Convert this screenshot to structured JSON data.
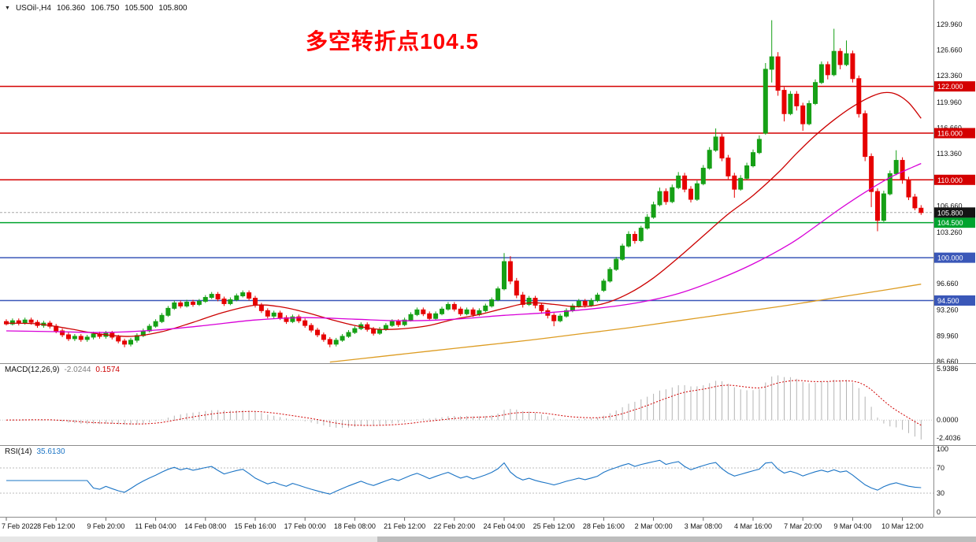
{
  "header": {
    "symbol_period": "USOil-,H4",
    "open": "106.360",
    "high": "106.750",
    "low": "105.500",
    "close": "105.800"
  },
  "annotation": {
    "text": "多空转折点104.5",
    "color": "#ff0000"
  },
  "chart_data": {
    "type": "candlestick",
    "symbol": "USOil-",
    "timeframe": "H4",
    "price_axis": {
      "labels": [
        "129.960",
        "126.660",
        "123.360",
        "119.960",
        "116.660",
        "113.360",
        "106.660",
        "103.260",
        "96.660",
        "93.260",
        "89.960",
        "86.660"
      ],
      "range": [
        86.66,
        129.96
      ]
    },
    "time_axis": {
      "labels": [
        "7 Feb 2022",
        "8 Feb 12:00",
        "9 Feb 20:00",
        "11 Feb 04:00",
        "14 Feb 08:00",
        "15 Feb 16:00",
        "17 Feb 00:00",
        "18 Feb 08:00",
        "21 Feb 12:00",
        "22 Feb 20:00",
        "24 Feb 04:00",
        "25 Feb 12:00",
        "28 Feb 16:00",
        "2 Mar 00:00",
        "3 Mar 08:00",
        "4 Mar 16:00",
        "7 Mar 20:00",
        "9 Mar 04:00",
        "10 Mar 12:00"
      ]
    },
    "levels": [
      {
        "label": "122.000",
        "price": 122.0,
        "color": "#d40000"
      },
      {
        "label": "116.000",
        "price": 116.0,
        "color": "#d40000"
      },
      {
        "label": "110.000",
        "price": 110.0,
        "color": "#d40000"
      },
      {
        "label": "104.500",
        "price": 104.5,
        "color": "#00a32e"
      },
      {
        "label": "100.000",
        "price": 100.0,
        "color": "#3a57b8"
      },
      {
        "label": "94.500",
        "price": 94.5,
        "color": "#3a57b8"
      }
    ],
    "current_price": {
      "label": "105.800",
      "price": 105.8,
      "color": "#141414"
    },
    "candles": [
      [
        91.8,
        92.1,
        91.3,
        91.5
      ],
      [
        91.5,
        92.2,
        91.3,
        91.9
      ],
      [
        91.9,
        92.2,
        91.3,
        91.6
      ],
      [
        91.6,
        92.3,
        91.4,
        92.0
      ],
      [
        92.0,
        92.3,
        91.4,
        91.7
      ],
      [
        91.7,
        92.0,
        91.0,
        91.3
      ],
      [
        91.3,
        91.9,
        91.0,
        91.6
      ],
      [
        91.6,
        91.9,
        90.9,
        91.2
      ],
      [
        91.2,
        91.5,
        90.3,
        90.6
      ],
      [
        90.6,
        90.9,
        89.8,
        90.1
      ],
      [
        90.1,
        90.4,
        89.3,
        89.6
      ],
      [
        89.6,
        90.2,
        89.3,
        89.9
      ],
      [
        89.9,
        90.2,
        89.2,
        89.5
      ],
      [
        89.5,
        90.1,
        89.2,
        89.8
      ],
      [
        89.8,
        90.5,
        89.5,
        90.2
      ],
      [
        90.2,
        90.5,
        89.6,
        89.9
      ],
      [
        89.9,
        90.6,
        89.6,
        90.3
      ],
      [
        90.3,
        90.6,
        89.5,
        89.8
      ],
      [
        89.8,
        90.1,
        89.0,
        89.3
      ],
      [
        89.3,
        89.6,
        88.5,
        88.9
      ],
      [
        88.9,
        89.7,
        88.6,
        89.4
      ],
      [
        89.4,
        90.3,
        89.1,
        90.0
      ],
      [
        90.0,
        90.9,
        89.8,
        90.6
      ],
      [
        90.6,
        91.5,
        90.4,
        91.2
      ],
      [
        91.2,
        92.1,
        91.0,
        91.8
      ],
      [
        91.8,
        92.9,
        91.6,
        92.6
      ],
      [
        92.6,
        93.8,
        92.4,
        93.5
      ],
      [
        93.5,
        94.5,
        93.3,
        94.2
      ],
      [
        94.2,
        94.5,
        93.5,
        93.8
      ],
      [
        93.8,
        94.6,
        93.6,
        94.3
      ],
      [
        94.3,
        94.6,
        93.7,
        94.0
      ],
      [
        94.0,
        94.7,
        93.8,
        94.4
      ],
      [
        94.4,
        95.2,
        94.2,
        94.9
      ],
      [
        94.9,
        95.6,
        94.7,
        95.3
      ],
      [
        95.3,
        95.6,
        94.4,
        94.7
      ],
      [
        94.7,
        95.0,
        93.8,
        94.1
      ],
      [
        94.1,
        94.9,
        93.9,
        94.6
      ],
      [
        94.6,
        95.4,
        94.4,
        95.1
      ],
      [
        95.1,
        95.8,
        94.9,
        95.5
      ],
      [
        95.5,
        95.8,
        94.5,
        94.8
      ],
      [
        94.8,
        95.1,
        93.6,
        93.9
      ],
      [
        93.9,
        94.2,
        92.9,
        93.2
      ],
      [
        93.2,
        93.5,
        92.2,
        92.5
      ],
      [
        92.5,
        93.2,
        92.2,
        92.9
      ],
      [
        92.9,
        93.2,
        92.0,
        92.3
      ],
      [
        92.3,
        92.6,
        91.5,
        91.8
      ],
      [
        91.8,
        92.7,
        91.6,
        92.4
      ],
      [
        92.4,
        92.7,
        91.6,
        91.9
      ],
      [
        91.9,
        92.2,
        91.0,
        91.3
      ],
      [
        91.3,
        91.6,
        90.4,
        90.7
      ],
      [
        90.7,
        91.0,
        89.8,
        90.1
      ],
      [
        90.1,
        90.4,
        89.2,
        89.5
      ],
      [
        89.5,
        89.8,
        88.5,
        88.9
      ],
      [
        88.9,
        89.7,
        88.6,
        89.4
      ],
      [
        89.4,
        90.2,
        89.2,
        89.9
      ],
      [
        89.9,
        90.7,
        89.7,
        90.4
      ],
      [
        90.4,
        91.2,
        90.2,
        90.9
      ],
      [
        90.9,
        91.7,
        90.7,
        91.4
      ],
      [
        91.4,
        91.7,
        90.5,
        90.8
      ],
      [
        90.8,
        91.1,
        90.0,
        90.3
      ],
      [
        90.3,
        91.1,
        90.1,
        90.8
      ],
      [
        90.8,
        91.6,
        90.6,
        91.3
      ],
      [
        91.3,
        92.1,
        91.1,
        91.8
      ],
      [
        91.8,
        92.1,
        91.1,
        91.4
      ],
      [
        91.4,
        92.3,
        91.2,
        92.0
      ],
      [
        92.0,
        93.0,
        91.8,
        92.7
      ],
      [
        92.7,
        93.6,
        92.5,
        93.3
      ],
      [
        93.3,
        93.6,
        92.5,
        92.8
      ],
      [
        92.8,
        93.1,
        91.9,
        92.2
      ],
      [
        92.2,
        93.1,
        92.0,
        92.8
      ],
      [
        92.8,
        93.7,
        92.6,
        93.4
      ],
      [
        93.4,
        94.3,
        93.2,
        94.0
      ],
      [
        94.0,
        94.3,
        93.1,
        93.4
      ],
      [
        93.4,
        93.7,
        92.5,
        92.8
      ],
      [
        92.8,
        93.6,
        92.6,
        93.3
      ],
      [
        93.3,
        93.6,
        92.4,
        92.7
      ],
      [
        92.7,
        93.5,
        92.5,
        93.2
      ],
      [
        93.2,
        94.1,
        93.0,
        93.8
      ],
      [
        93.8,
        94.9,
        93.6,
        94.6
      ],
      [
        94.6,
        96.3,
        94.4,
        96.0
      ],
      [
        96.0,
        100.6,
        95.8,
        99.5
      ],
      [
        99.5,
        100.2,
        96.6,
        97.0
      ],
      [
        97.0,
        97.4,
        94.8,
        95.2
      ],
      [
        95.2,
        95.6,
        93.6,
        94.0
      ],
      [
        94.0,
        95.1,
        93.8,
        94.8
      ],
      [
        94.8,
        95.1,
        93.5,
        93.9
      ],
      [
        93.9,
        94.2,
        92.8,
        93.2
      ],
      [
        93.2,
        93.5,
        92.2,
        92.6
      ],
      [
        92.6,
        92.9,
        91.2,
        91.9
      ],
      [
        91.9,
        92.8,
        91.7,
        92.5
      ],
      [
        92.5,
        93.5,
        92.3,
        93.2
      ],
      [
        93.2,
        94.1,
        93.0,
        93.8
      ],
      [
        93.8,
        94.7,
        93.6,
        94.4
      ],
      [
        94.4,
        94.7,
        93.6,
        93.9
      ],
      [
        93.9,
        94.8,
        93.7,
        94.5
      ],
      [
        94.5,
        95.5,
        94.3,
        95.2
      ],
      [
        95.8,
        97.3,
        95.6,
        97.0
      ],
      [
        97.0,
        98.8,
        96.8,
        98.5
      ],
      [
        98.5,
        100.1,
        98.3,
        99.8
      ],
      [
        99.8,
        101.8,
        99.6,
        101.5
      ],
      [
        101.5,
        103.4,
        101.3,
        103.0
      ],
      [
        103.0,
        103.4,
        101.8,
        102.2
      ],
      [
        102.2,
        104.1,
        102.0,
        103.8
      ],
      [
        103.8,
        105.6,
        103.6,
        105.2
      ],
      [
        105.2,
        107.2,
        105.0,
        106.8
      ],
      [
        106.8,
        109.0,
        106.6,
        108.5
      ],
      [
        108.5,
        108.9,
        106.8,
        107.2
      ],
      [
        107.2,
        109.4,
        107.0,
        109.0
      ],
      [
        109.0,
        111.0,
        108.8,
        110.5
      ],
      [
        110.5,
        110.9,
        108.4,
        108.8
      ],
      [
        108.8,
        109.2,
        107.1,
        107.5
      ],
      [
        107.5,
        109.9,
        107.3,
        109.5
      ],
      [
        109.5,
        111.9,
        109.3,
        111.5
      ],
      [
        111.5,
        114.2,
        111.3,
        113.8
      ],
      [
        113.8,
        116.6,
        113.6,
        115.5
      ],
      [
        115.5,
        115.9,
        112.4,
        112.8
      ],
      [
        112.8,
        113.2,
        110.1,
        110.5
      ],
      [
        110.5,
        110.9,
        107.7,
        108.8
      ],
      [
        108.8,
        110.6,
        108.6,
        110.2
      ],
      [
        110.2,
        112.2,
        110.0,
        111.8
      ],
      [
        111.8,
        113.9,
        111.6,
        113.5
      ],
      [
        113.5,
        115.7,
        113.3,
        115.2
      ],
      [
        116.0,
        125.0,
        115.8,
        124.2
      ],
      [
        124.2,
        130.5,
        122.5,
        125.8
      ],
      [
        125.8,
        126.4,
        120.8,
        121.5
      ],
      [
        121.5,
        121.9,
        117.5,
        118.5
      ],
      [
        118.5,
        121.4,
        118.3,
        121.0
      ],
      [
        121.0,
        121.4,
        118.9,
        119.5
      ],
      [
        119.5,
        119.9,
        116.3,
        117.2
      ],
      [
        117.2,
        120.2,
        117.0,
        119.8
      ],
      [
        119.8,
        122.9,
        119.6,
        122.5
      ],
      [
        122.5,
        125.2,
        122.3,
        124.8
      ],
      [
        124.8,
        125.2,
        122.9,
        123.5
      ],
      [
        123.5,
        129.4,
        123.3,
        126.5
      ],
      [
        126.5,
        126.9,
        124.2,
        124.8
      ],
      [
        124.8,
        127.9,
        124.6,
        126.2
      ],
      [
        126.2,
        126.6,
        122.5,
        123.0
      ],
      [
        123.0,
        123.4,
        118.0,
        118.5
      ],
      [
        118.5,
        118.9,
        112.4,
        113.0
      ],
      [
        113.0,
        113.4,
        106.5,
        108.5
      ],
      [
        108.5,
        108.9,
        103.4,
        104.8
      ],
      [
        104.8,
        108.6,
        104.6,
        108.2
      ],
      [
        108.2,
        111.2,
        108.0,
        110.8
      ],
      [
        110.8,
        113.8,
        110.6,
        112.5
      ],
      [
        112.5,
        112.9,
        109.5,
        110.0
      ],
      [
        110.0,
        110.4,
        107.4,
        107.8
      ],
      [
        107.8,
        108.2,
        106.1,
        106.4
      ],
      [
        106.36,
        106.75,
        105.5,
        105.8
      ]
    ],
    "overlays": [
      {
        "name": "ma-fast-red",
        "color": "#cc0000",
        "points": [
          [
            0,
            91.6
          ],
          [
            5,
            91.5
          ],
          [
            10,
            90.9
          ],
          [
            15,
            90.2
          ],
          [
            20,
            89.9
          ],
          [
            25,
            90.5
          ],
          [
            30,
            91.7
          ],
          [
            35,
            93.0
          ],
          [
            40,
            93.9
          ],
          [
            44,
            93.7
          ],
          [
            48,
            93.0
          ],
          [
            52,
            92.1
          ],
          [
            56,
            91.3
          ],
          [
            60,
            90.8
          ],
          [
            64,
            90.9
          ],
          [
            68,
            91.3
          ],
          [
            72,
            92.1
          ],
          [
            76,
            92.7
          ],
          [
            80,
            93.5
          ],
          [
            84,
            94.2
          ],
          [
            88,
            94.0
          ],
          [
            92,
            93.7
          ],
          [
            96,
            94.1
          ],
          [
            100,
            95.4
          ],
          [
            104,
            97.4
          ],
          [
            108,
            100.0
          ],
          [
            112,
            102.8
          ],
          [
            116,
            105.6
          ],
          [
            120,
            108.0
          ],
          [
            124,
            110.9
          ],
          [
            127,
            113.4
          ],
          [
            130,
            115.7
          ],
          [
            133,
            117.7
          ],
          [
            136,
            119.4
          ],
          [
            139,
            120.7
          ],
          [
            141,
            121.2
          ],
          [
            143,
            121.0
          ],
          [
            145,
            119.9
          ],
          [
            147,
            117.9
          ]
        ]
      },
      {
        "name": "ma-mid-magenta",
        "color": "#d800d8",
        "points": [
          [
            0,
            90.6
          ],
          [
            8,
            90.5
          ],
          [
            16,
            90.4
          ],
          [
            24,
            90.7
          ],
          [
            32,
            91.3
          ],
          [
            40,
            92.0
          ],
          [
            48,
            92.3
          ],
          [
            56,
            92.1
          ],
          [
            64,
            91.9
          ],
          [
            72,
            92.1
          ],
          [
            80,
            92.6
          ],
          [
            88,
            93.0
          ],
          [
            96,
            93.6
          ],
          [
            102,
            94.3
          ],
          [
            108,
            95.4
          ],
          [
            114,
            97.1
          ],
          [
            120,
            99.2
          ],
          [
            126,
            101.8
          ],
          [
            130,
            104.0
          ],
          [
            134,
            106.3
          ],
          [
            138,
            108.4
          ],
          [
            142,
            110.3
          ],
          [
            145,
            111.4
          ],
          [
            147,
            112.1
          ]
        ]
      },
      {
        "name": "ma-slow-orange",
        "color": "#dd9c22",
        "points": [
          [
            52,
            86.6
          ],
          [
            60,
            87.3
          ],
          [
            68,
            88.0
          ],
          [
            76,
            88.7
          ],
          [
            84,
            89.4
          ],
          [
            92,
            90.2
          ],
          [
            100,
            91.0
          ],
          [
            108,
            91.9
          ],
          [
            116,
            92.8
          ],
          [
            124,
            93.7
          ],
          [
            132,
            94.7
          ],
          [
            140,
            95.7
          ],
          [
            147,
            96.6
          ]
        ]
      }
    ],
    "macd": {
      "label": "MACD(12,26,9)",
      "value_main": "-2.0244",
      "value_signal": "0.1574",
      "fast": 12,
      "slow": 26,
      "signal_period": 9,
      "scale_max": "5.9386",
      "scale_zero": "0.0000",
      "scale_min": "-2.4036",
      "histogram_color": "#b4b4b4",
      "signal_color": "#d00000"
    },
    "rsi": {
      "label": "RSI(14)",
      "value": "35.6130",
      "period": 14,
      "line_color": "#1b74c5",
      "levels": [
        70,
        30
      ],
      "scale_labels": [
        {
          "text": "100",
          "value": 100
        },
        {
          "text": "70",
          "value": 70
        },
        {
          "text": "30",
          "value": 30
        },
        {
          "text": "0",
          "value": 0
        }
      ]
    },
    "colors": {
      "bull": "#16a016",
      "bear": "#e60000",
      "background": "#ffffff",
      "separator": "#8c8c8c"
    }
  }
}
